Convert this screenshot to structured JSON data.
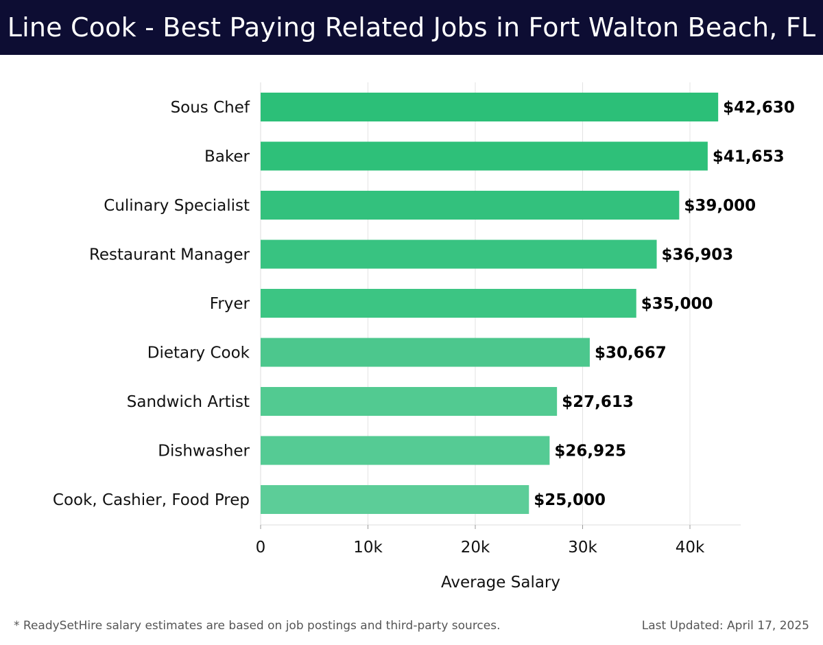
{
  "header": {
    "title": "Line Cook - Best Paying Related Jobs in Fort Walton Beach, FL"
  },
  "chart_data": {
    "type": "bar",
    "orientation": "horizontal",
    "title": "Line Cook - Best Paying Related Jobs in Fort Walton Beach, FL",
    "xlabel": "Average Salary",
    "ylabel": "",
    "xlim": [
      0,
      45000
    ],
    "xticks": [
      0,
      10000,
      20000,
      30000,
      40000
    ],
    "xtick_labels": [
      "0",
      "10k",
      "20k",
      "30k",
      "40k"
    ],
    "grid": true,
    "categories": [
      "Sous Chef",
      "Baker",
      "Culinary Specialist",
      "Restaurant Manager",
      "Fryer",
      "Dietary Cook",
      "Sandwich Artist",
      "Dishwasher",
      "Cook, Cashier, Food Prep"
    ],
    "values": [
      42630,
      41653,
      39000,
      36903,
      35000,
      30667,
      27613,
      26925,
      25000
    ],
    "value_labels": [
      "$42,630",
      "$41,653",
      "$39,000",
      "$36,903",
      "$35,000",
      "$30,667",
      "$27,613",
      "$26,925",
      "$25,000"
    ],
    "colors": [
      "#2cbf78",
      "#2ec079",
      "#33c17d",
      "#38c381",
      "#3cc583",
      "#4cc78d",
      "#52ca91",
      "#55cb94",
      "#5ccd98"
    ]
  },
  "footer": {
    "note": "* ReadySetHire salary estimates are based on job postings and third-party sources.",
    "updated": "Last Updated: April 17, 2025"
  }
}
